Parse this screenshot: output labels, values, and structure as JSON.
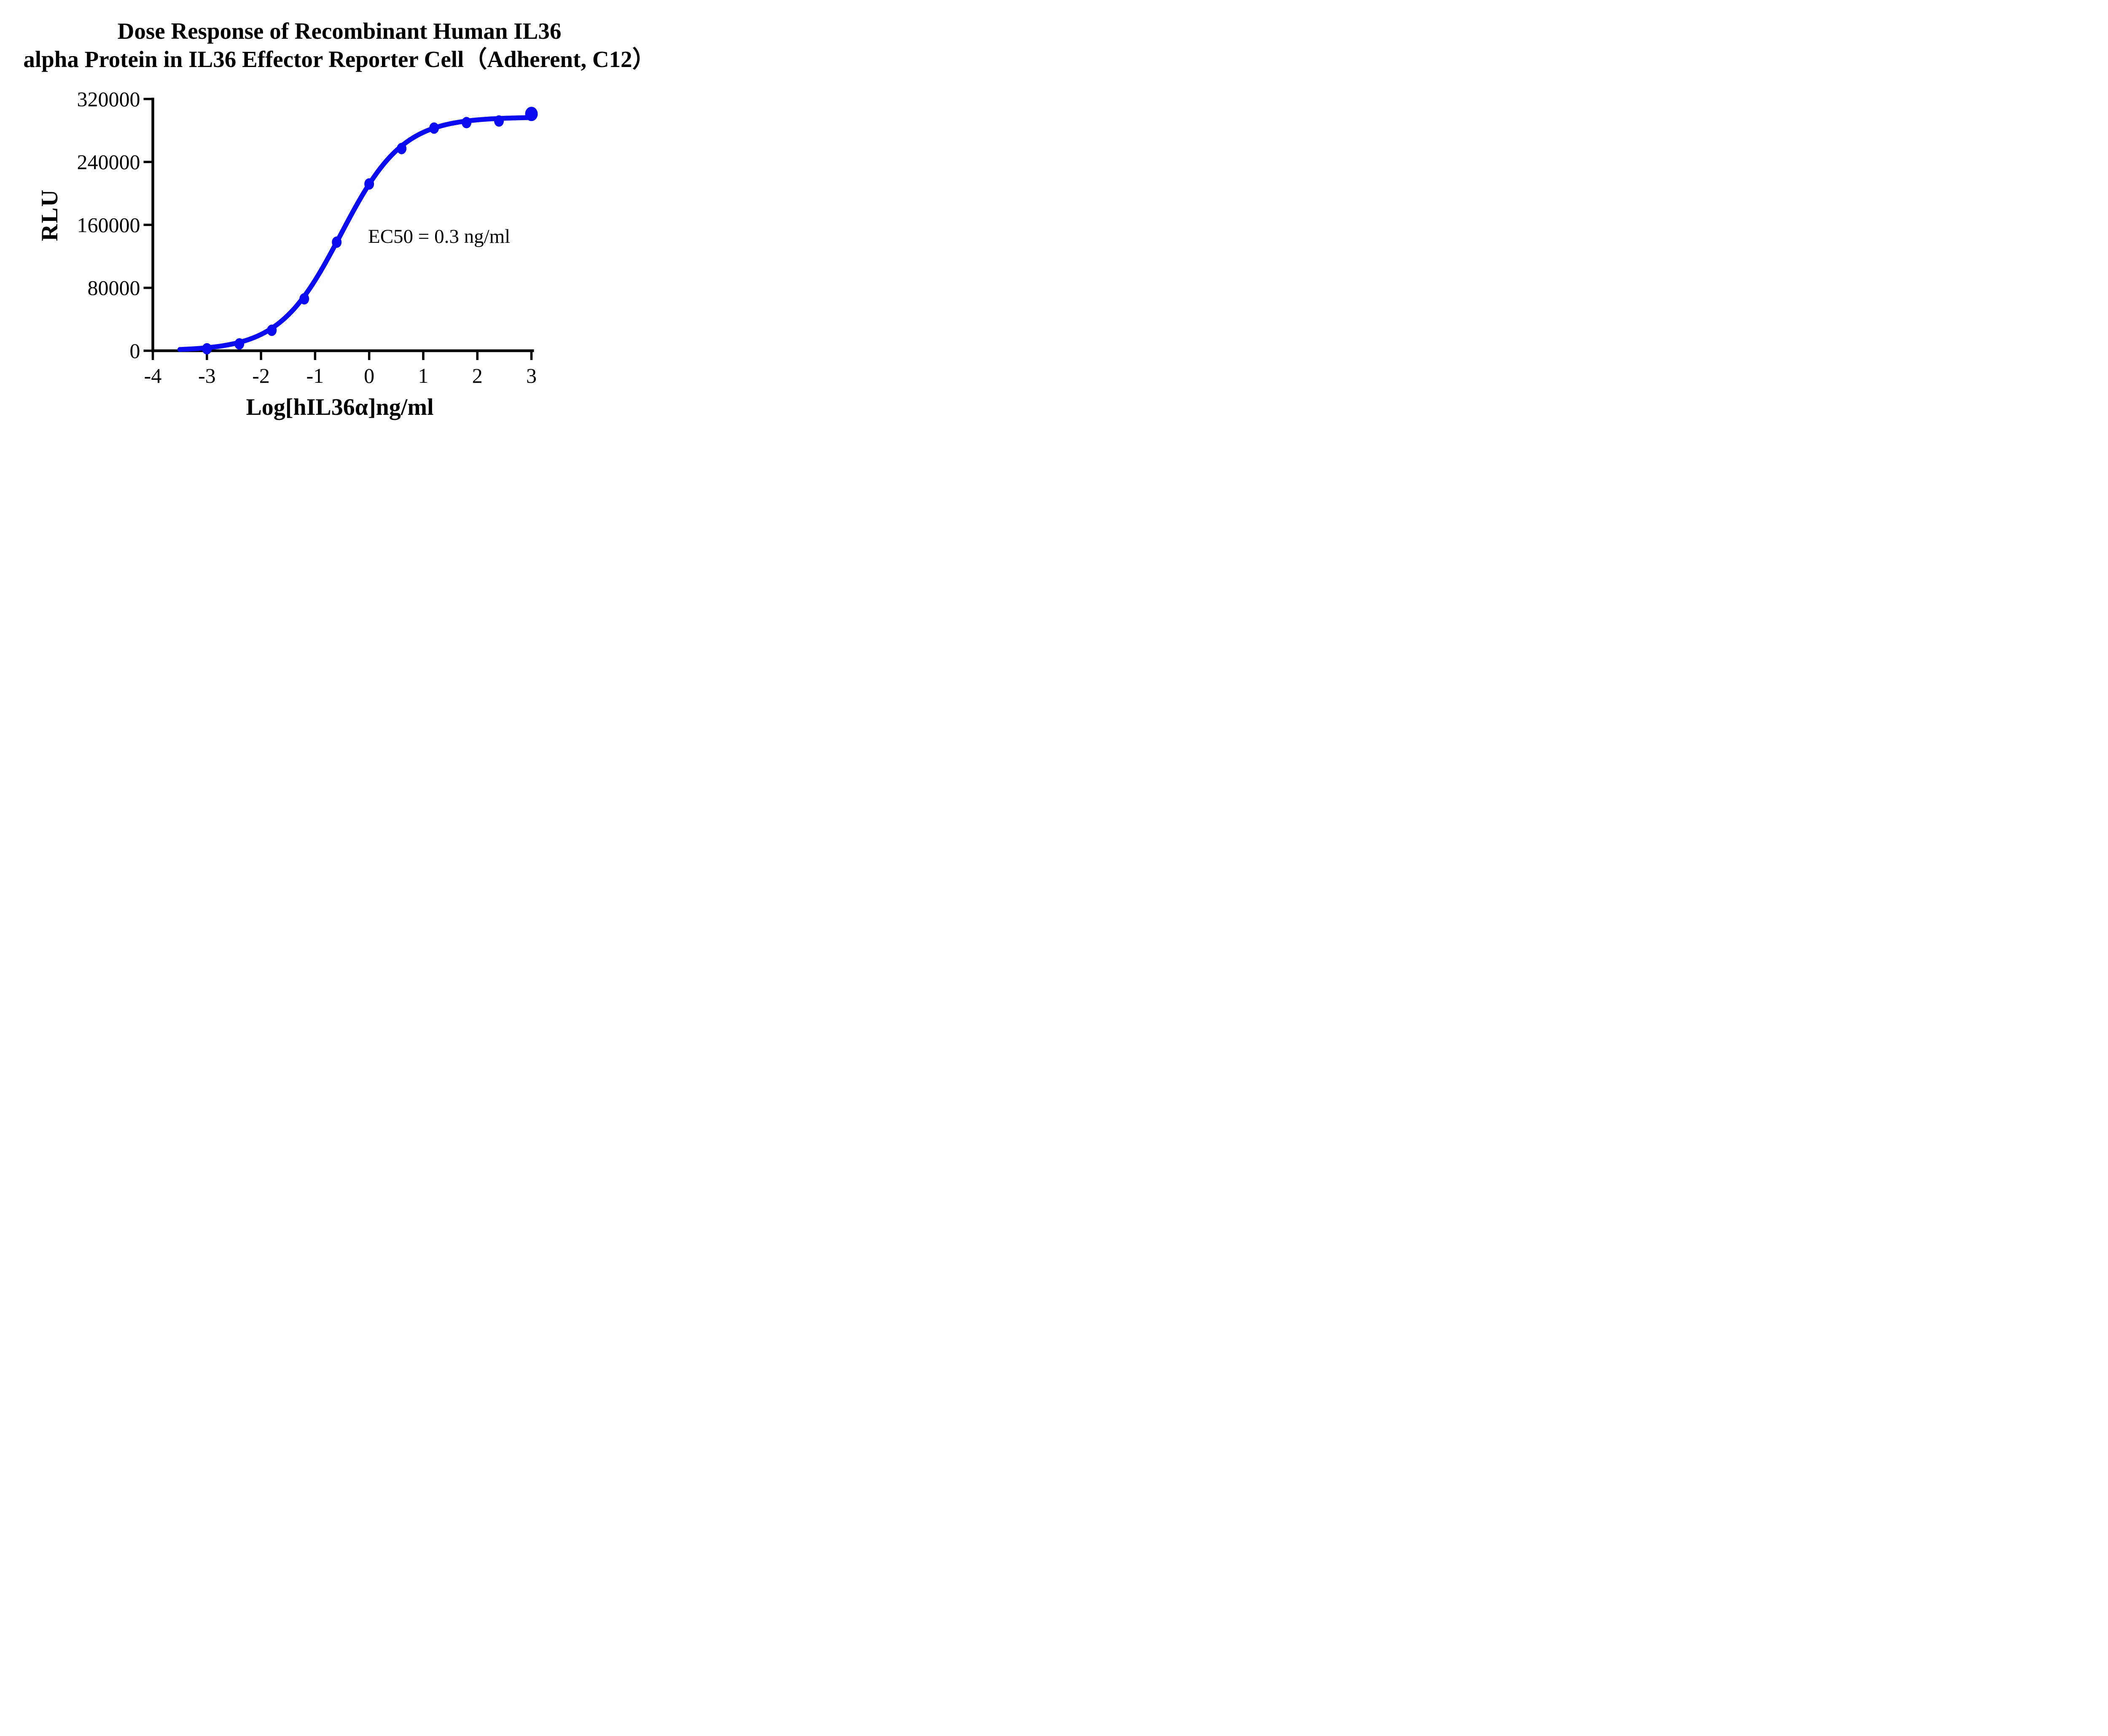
{
  "title": {
    "line1": "Dose Response of Recombinant Human IL36",
    "line2": "alpha Protein in IL36 Effector Reporter Cell（Adherent, C12）"
  },
  "colors": {
    "curve": "#0a0af0",
    "axis": "#000000",
    "text": "#000000",
    "background": "#ffffff"
  },
  "chart_data": {
    "type": "scatter",
    "title": "Dose Response of Recombinant Human IL36 alpha Protein in IL36 Effector Reporter Cell（Adherent, C12）",
    "xlabel": "Log[hIL36α]ng/ml",
    "ylabel": "RLU",
    "annotation": "EC50 = 0.3 ng/ml",
    "x_ticks": [
      -4,
      -3,
      -2,
      -1,
      0,
      1,
      2,
      3
    ],
    "y_ticks": [
      0,
      80000,
      160000,
      240000,
      320000
    ],
    "xlim": [
      -4,
      3.05
    ],
    "ylim": [
      0,
      320000
    ],
    "grid": false,
    "legend": "none",
    "series": [
      {
        "name": "hIL36 alpha",
        "color": "#0a0af0",
        "marker": "ellipse",
        "points": [
          {
            "x": -3.0,
            "y": 2500
          },
          {
            "x": -2.4,
            "y": 8700
          },
          {
            "x": -1.8,
            "y": 26000
          },
          {
            "x": -1.2,
            "y": 66000
          },
          {
            "x": -0.6,
            "y": 138000
          },
          {
            "x": 0.0,
            "y": 212000
          },
          {
            "x": 0.6,
            "y": 257000
          },
          {
            "x": 1.2,
            "y": 283000
          },
          {
            "x": 1.8,
            "y": 290000
          },
          {
            "x": 2.4,
            "y": 292000
          },
          {
            "x": 3.0,
            "y": 301000
          }
        ]
      }
    ],
    "fit_curve": {
      "model": "4PL",
      "bottom": 0,
      "top": 297000,
      "log_ec50": -0.52,
      "hill": 0.76,
      "x_start": -3.5,
      "x_end": 3.0,
      "ec50_ng_ml": 0.3
    }
  }
}
